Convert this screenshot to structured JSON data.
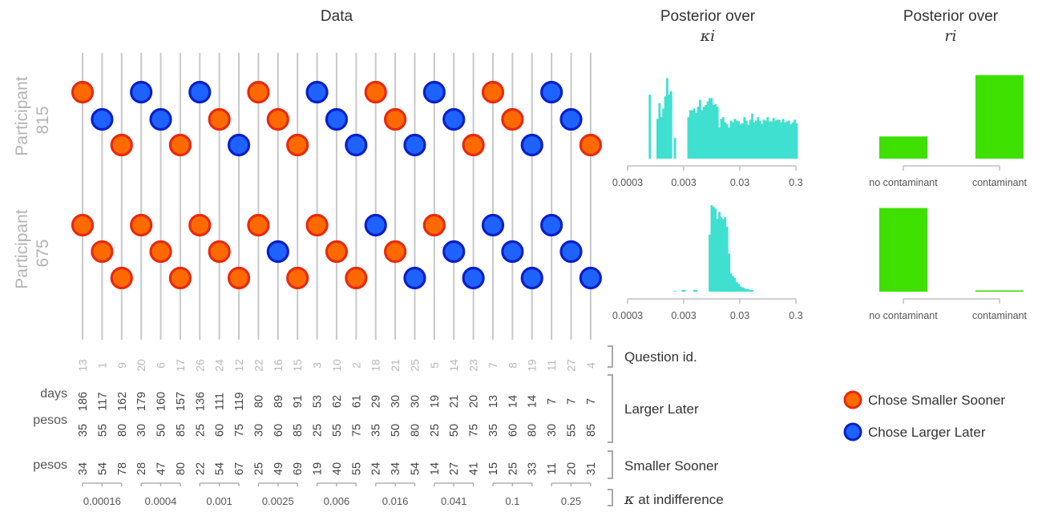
{
  "titles": {
    "data": "Data",
    "kappa_line1": "Posterior over",
    "kappa_symbol": "κi",
    "r_line1": "Posterior over",
    "r_symbol": "ri"
  },
  "participants": [
    {
      "label": "Participant",
      "id": "815"
    },
    {
      "label": "Participant",
      "id": "675"
    }
  ],
  "questions": {
    "ids": [
      "13",
      "1",
      "9",
      "20",
      "6",
      "17",
      "26",
      "24",
      "12",
      "22",
      "16",
      "15",
      "3",
      "10",
      "2",
      "18",
      "21",
      "25",
      "5",
      "14",
      "23",
      "7",
      "8",
      "19",
      "11",
      "27",
      "4"
    ],
    "ll_days": [
      "186",
      "117",
      "162",
      "179",
      "160",
      "157",
      "136",
      "111",
      "119",
      "80",
      "89",
      "91",
      "53",
      "62",
      "61",
      "29",
      "30",
      "30",
      "19",
      "21",
      "20",
      "13",
      "14",
      "14",
      "7",
      "7",
      "7"
    ],
    "ll_pesos": [
      "35",
      "55",
      "80",
      "30",
      "50",
      "85",
      "25",
      "60",
      "75",
      "30",
      "60",
      "85",
      "25",
      "55",
      "75",
      "35",
      "50",
      "80",
      "25",
      "50",
      "75",
      "35",
      "60",
      "80",
      "30",
      "55",
      "85"
    ],
    "ss_pesos": [
      "34",
      "54",
      "78",
      "28",
      "47",
      "80",
      "22",
      "54",
      "67",
      "25",
      "49",
      "69",
      "19",
      "40",
      "55",
      "24",
      "34",
      "54",
      "14",
      "27",
      "41",
      "15",
      "25",
      "33",
      "11",
      "20",
      "31"
    ]
  },
  "row_labels": {
    "days": "days",
    "pesos_ll": "pesos",
    "pesos_ss": "pesos"
  },
  "bracket_labels": {
    "question_id": "Question id.",
    "larger_later": "Larger Later",
    "smaller_sooner": "Smaller Sooner",
    "kappa_prefix": "κ",
    "kappa_suffix": " at indifference"
  },
  "indifference": [
    "0.00016",
    "0.0004",
    "0.001",
    "0.0025",
    "0.006",
    "0.016",
    "0.041",
    "0.1",
    "0.25"
  ],
  "legend": {
    "ss": "Chose Smaller Sooner",
    "ll": "Chose Larger Later"
  },
  "colors": {
    "ss_fill": "#ff6a00",
    "ss_ring": "#e8290f",
    "ll_fill": "#1e62ff",
    "ll_ring": "#0a1fc8",
    "kappa_hist": "#40e0d0",
    "r_bar": "#3ee000",
    "grid": "#c8c8c8"
  },
  "chart_data": [
    {
      "type": "scatter",
      "title": "Data",
      "description_note_free": true,
      "categories_question_id": [
        "13",
        "1",
        "9",
        "20",
        "6",
        "17",
        "26",
        "24",
        "12",
        "22",
        "16",
        "15",
        "3",
        "10",
        "2",
        "18",
        "21",
        "25",
        "5",
        "14",
        "23",
        "7",
        "8",
        "19",
        "11",
        "27",
        "4"
      ],
      "series": [
        {
          "participant": "815",
          "choices": [
            "SS",
            "LL",
            "SS",
            "LL",
            "LL",
            "SS",
            "LL",
            "SS",
            "LL",
            "SS",
            "SS",
            "SS",
            "LL",
            "LL",
            "LL",
            "SS",
            "SS",
            "LL",
            "LL",
            "LL",
            "SS",
            "SS",
            "SS",
            "LL",
            "LL",
            "LL",
            "SS"
          ]
        },
        {
          "participant": "675",
          "choices": [
            "SS",
            "SS",
            "SS",
            "SS",
            "SS",
            "SS",
            "SS",
            "SS",
            "SS",
            "SS",
            "LL",
            "SS",
            "SS",
            "SS",
            "SS",
            "LL",
            "SS",
            "LL",
            "SS",
            "LL",
            "LL",
            "LL",
            "LL",
            "LL",
            "LL",
            "LL",
            "LL"
          ]
        }
      ]
    },
    {
      "type": "bar",
      "panel": "kappa posterior",
      "participant": "815",
      "xscale": "log",
      "xticks": [
        "0.0003",
        "0.003",
        "0.03",
        "0.3"
      ],
      "xlim": [
        0.0003,
        0.3
      ],
      "relative_heights": [
        0.0,
        0.0,
        0.0,
        0.0,
        0.0,
        0.0,
        0.0,
        0.0,
        0.0,
        0.0,
        0.0,
        0.0,
        0.0,
        0.74,
        0.0,
        0.0,
        0.0,
        0.46,
        0.64,
        0.48,
        0.58,
        0.72,
        0.93,
        0.74,
        0.78,
        0.0,
        0.24,
        0.0,
        0.0,
        0.0,
        0.0,
        0.0,
        0.0,
        0.48,
        0.56,
        0.56,
        0.58,
        0.53,
        0.6,
        0.68,
        0.56,
        0.6,
        0.62,
        0.66,
        0.7,
        0.7,
        0.62,
        0.63,
        0.6,
        0.36,
        0.46,
        0.48,
        0.42,
        0.4,
        0.36,
        0.44,
        0.42,
        0.46,
        0.44,
        0.43,
        0.4,
        0.41,
        0.48,
        0.44,
        0.39,
        0.45,
        0.52,
        0.42,
        0.44,
        0.48,
        0.44,
        0.4,
        0.45,
        0.44,
        0.48,
        0.43,
        0.43,
        0.47,
        0.44,
        0.45,
        0.45,
        0.42,
        0.46,
        0.42,
        0.43,
        0.44,
        0.4,
        0.42,
        0.45,
        0.41
      ]
    },
    {
      "type": "bar",
      "panel": "kappa posterior",
      "participant": "675",
      "xscale": "log",
      "xticks": [
        "0.0003",
        "0.003",
        "0.03",
        "0.3"
      ],
      "xlim": [
        0.0003,
        0.3
      ],
      "relative_heights": [
        0.0,
        0.0,
        0.0,
        0.0,
        0.0,
        0.0,
        0.0,
        0.0,
        0.0,
        0.0,
        0.0,
        0.0,
        0.0,
        0.0,
        0.0,
        0.0,
        0.0,
        0.0,
        0.0,
        0.0,
        0.0,
        0.0,
        0.0,
        0.0,
        0.0,
        0.0,
        0.01,
        0.0,
        0.0,
        0.0,
        0.02,
        0.02,
        0.0,
        0.0,
        0.0,
        0.0,
        0.02,
        0.02,
        0.0,
        0.0,
        0.0,
        0.0,
        0.0,
        0.0,
        0.66,
        1.0,
        0.98,
        0.96,
        0.84,
        0.92,
        0.86,
        0.84,
        0.86,
        0.75,
        0.44,
        0.21,
        0.18,
        0.16,
        0.11,
        0.09,
        0.06,
        0.05,
        0.04,
        0.03,
        0.03,
        0.02,
        0.02,
        0.0,
        0.0,
        0.0,
        0.0,
        0.0,
        0.0,
        0.0,
        0.0,
        0.0,
        0.0,
        0.0,
        0.0,
        0.0,
        0.0,
        0.0,
        0.0,
        0.0,
        0.0,
        0.0,
        0.0,
        0.0,
        0.0,
        0.0
      ]
    },
    {
      "type": "bar",
      "panel": "r posterior",
      "participant": "815",
      "categories": [
        "no contaminant",
        "contaminant"
      ],
      "values": [
        0.21,
        0.79
      ]
    },
    {
      "type": "bar",
      "panel": "r posterior",
      "participant": "675",
      "categories": [
        "no contaminant",
        "contaminant"
      ],
      "values": [
        0.985,
        0.015
      ]
    }
  ]
}
